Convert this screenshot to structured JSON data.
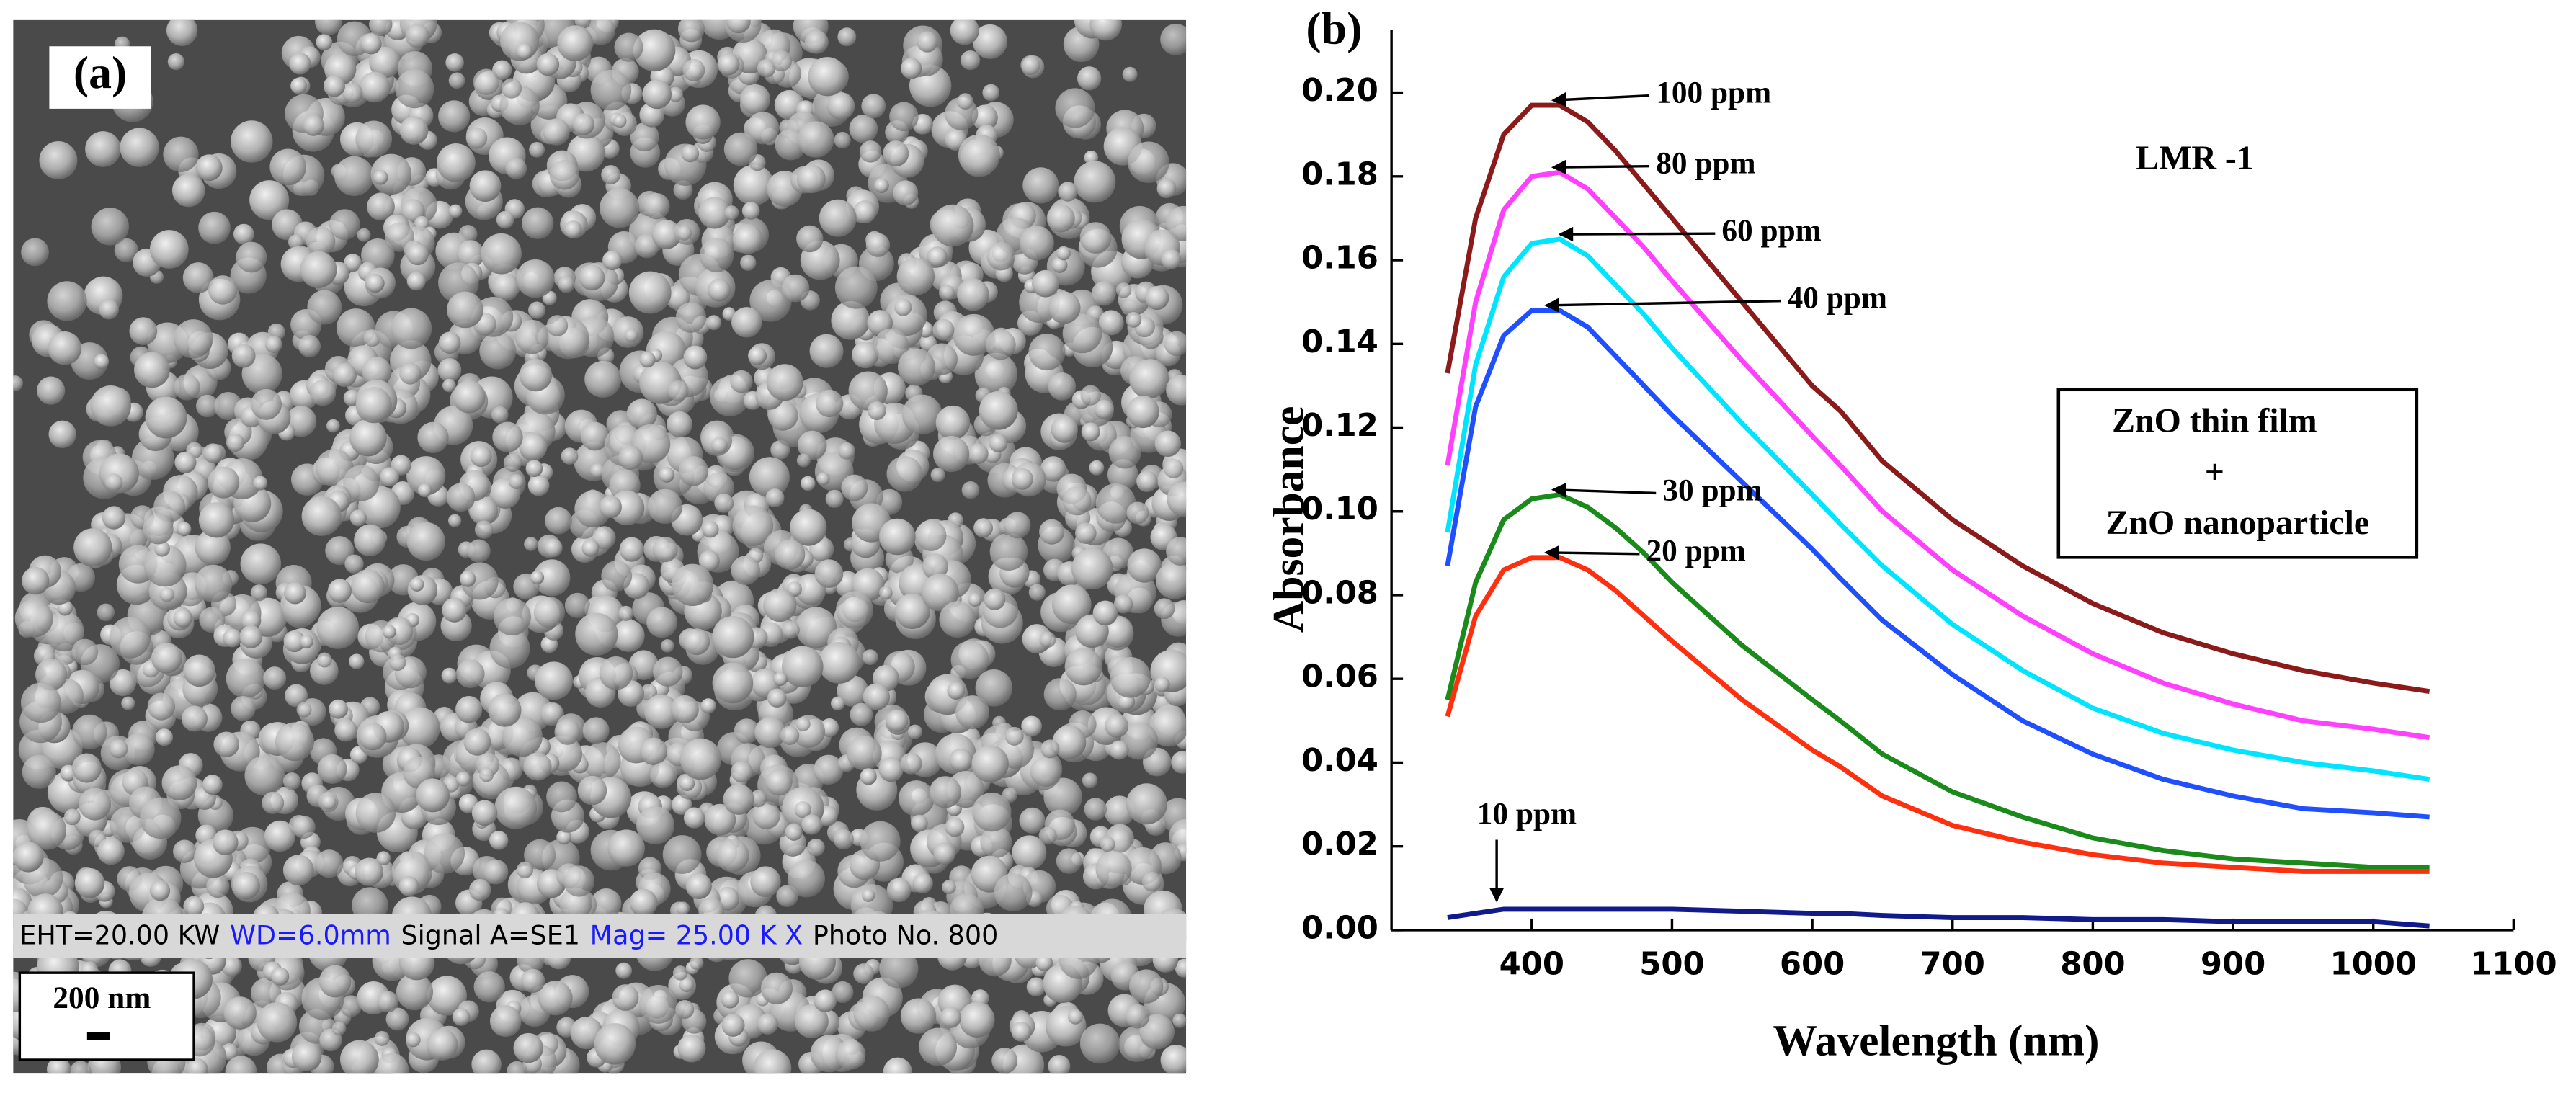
{
  "panel_a": {
    "label": "(a)",
    "info_bar": [
      {
        "text": "EHT=20.00 KW",
        "color": "#000000"
      },
      {
        "text": "WD=6.0mm",
        "color": "#1a1aff"
      },
      {
        "text": "Signal A=SE1",
        "color": "#000000"
      },
      {
        "text": "Mag= 25.00 K X",
        "color": "#1a1aff"
      },
      {
        "text": "Photo No. 800",
        "color": "#000000"
      }
    ],
    "scale_bar": "200 nm"
  },
  "chart_data": {
    "type": "line",
    "panel_label": "(b)",
    "xlabel": "Wavelength (nm)",
    "ylabel": "Absorbance",
    "xlim": [
      300,
      1100
    ],
    "ylim": [
      0,
      0.215
    ],
    "xticks": [
      400,
      500,
      600,
      700,
      800,
      900,
      1000,
      1100
    ],
    "yticks": [
      {
        "value": 0,
        "label": "0.00"
      },
      {
        "value": 0.02,
        "label": "0.02"
      },
      {
        "value": 0.04,
        "label": "0.04"
      },
      {
        "value": 0.06,
        "label": "0.06"
      },
      {
        "value": 0.08,
        "label": "0.08"
      },
      {
        "value": 0.1,
        "label": "0.10"
      },
      {
        "value": 0.12,
        "label": "0.12"
      },
      {
        "value": 0.14,
        "label": "0.14"
      },
      {
        "value": 0.16,
        "label": "0.16"
      },
      {
        "value": 0.18,
        "label": "0.18"
      },
      {
        "value": 0.2,
        "label": "0.20"
      }
    ],
    "annotations": [
      "LMR -1",
      "ZnO thin film",
      "+",
      "ZnO nanoparticle"
    ],
    "x": [
      340,
      360,
      380,
      400,
      420,
      440,
      460,
      480,
      500,
      550,
      600,
      620,
      650,
      700,
      750,
      800,
      850,
      900,
      950,
      1000,
      1040
    ],
    "series": [
      {
        "name": "100 ppm",
        "color": "#8b1a1a",
        "values": [
          0.133,
          0.17,
          0.19,
          0.197,
          0.197,
          0.193,
          0.186,
          0.178,
          0.17,
          0.15,
          0.13,
          0.124,
          0.112,
          0.098,
          0.087,
          0.078,
          0.071,
          0.066,
          0.062,
          0.059,
          0.057
        ]
      },
      {
        "name": "80 ppm",
        "color": "#ff40ff",
        "values": [
          0.111,
          0.15,
          0.172,
          0.18,
          0.181,
          0.177,
          0.17,
          0.163,
          0.155,
          0.136,
          0.118,
          0.111,
          0.1,
          0.086,
          0.075,
          0.066,
          0.059,
          0.054,
          0.05,
          0.048,
          0.046
        ]
      },
      {
        "name": "60 ppm",
        "color": "#00e5ff",
        "values": [
          0.095,
          0.135,
          0.156,
          0.164,
          0.165,
          0.161,
          0.154,
          0.147,
          0.139,
          0.121,
          0.104,
          0.097,
          0.087,
          0.073,
          0.062,
          0.053,
          0.047,
          0.043,
          0.04,
          0.038,
          0.036
        ]
      },
      {
        "name": "40 ppm",
        "color": "#1f4fff",
        "values": [
          0.087,
          0.125,
          0.142,
          0.148,
          0.148,
          0.144,
          0.137,
          0.13,
          0.123,
          0.107,
          0.091,
          0.084,
          0.074,
          0.061,
          0.05,
          0.042,
          0.036,
          0.032,
          0.029,
          0.028,
          0.027
        ]
      },
      {
        "name": "30 ppm",
        "color": "#1a8a1a",
        "values": [
          0.055,
          0.083,
          0.098,
          0.103,
          0.104,
          0.101,
          0.096,
          0.09,
          0.083,
          0.068,
          0.055,
          0.05,
          0.042,
          0.033,
          0.027,
          0.022,
          0.019,
          0.017,
          0.016,
          0.015,
          0.015
        ]
      },
      {
        "name": "20 ppm",
        "color": "#ff3010",
        "values": [
          0.051,
          0.075,
          0.086,
          0.089,
          0.089,
          0.086,
          0.081,
          0.075,
          0.069,
          0.055,
          0.043,
          0.039,
          0.032,
          0.025,
          0.021,
          0.018,
          0.016,
          0.015,
          0.014,
          0.014,
          0.014
        ]
      },
      {
        "name": "10 ppm",
        "color": "#101a8a",
        "values": [
          0.003,
          0.004,
          0.005,
          0.005,
          0.005,
          0.005,
          0.005,
          0.005,
          0.005,
          0.0045,
          0.004,
          0.004,
          0.0035,
          0.003,
          0.003,
          0.0025,
          0.0025,
          0.002,
          0.002,
          0.002,
          0.001
        ]
      }
    ]
  }
}
